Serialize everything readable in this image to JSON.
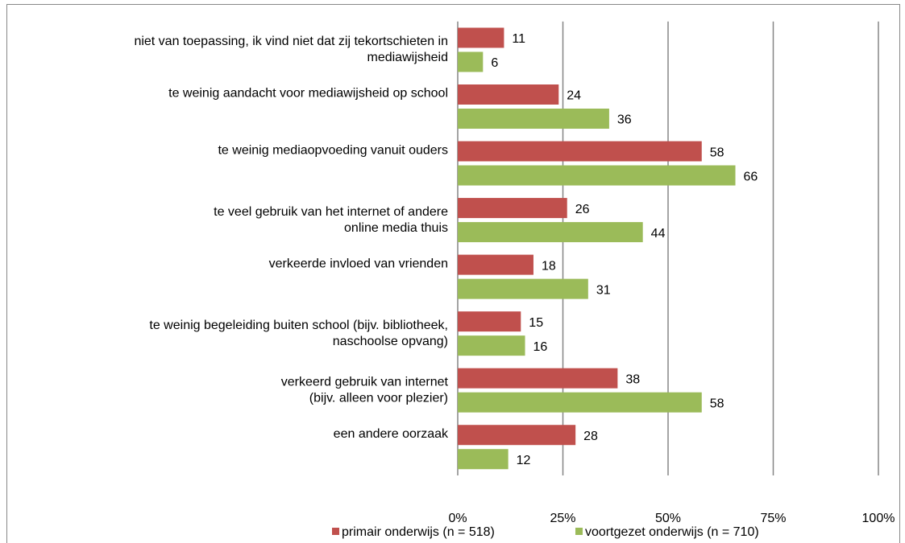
{
  "chart_data": {
    "type": "hbar",
    "categories": [
      [
        "niet van toepassing, ik vind niet dat zij tekortschieten in",
        "mediawijsheid"
      ],
      [
        "te weinig aandacht voor mediawijsheid op school"
      ],
      [
        "te weinig mediaopvoeding vanuit ouders"
      ],
      [
        "te veel gebruik van het internet of andere",
        "online media thuis"
      ],
      [
        "verkeerde invloed van vrienden"
      ],
      [
        "te weinig begeleiding buiten school (bijv. bibliotheek,",
        "naschoolse opvang)"
      ],
      [
        "verkeerd gebruik van internet",
        "(bijv. alleen voor plezier)"
      ],
      [
        "een andere oorzaak"
      ]
    ],
    "series": [
      {
        "name": "primair onderwijs (n = 518)",
        "color": "#c0504d",
        "values": [
          11,
          24,
          58,
          26,
          18,
          15,
          38,
          28
        ]
      },
      {
        "name": "voortgezet onderwijs (n = 710)",
        "color": "#9bbb59",
        "values": [
          6,
          36,
          66,
          44,
          31,
          16,
          58,
          12
        ]
      }
    ],
    "xlim": [
      0,
      100
    ],
    "xticks": [
      {
        "value": 0,
        "label": "0%"
      },
      {
        "value": 25,
        "label": "25%"
      },
      {
        "value": 50,
        "label": "50%"
      },
      {
        "value": 75,
        "label": "75%"
      },
      {
        "value": 100,
        "label": "100%"
      }
    ],
    "grid": true,
    "legend": "bottom"
  }
}
